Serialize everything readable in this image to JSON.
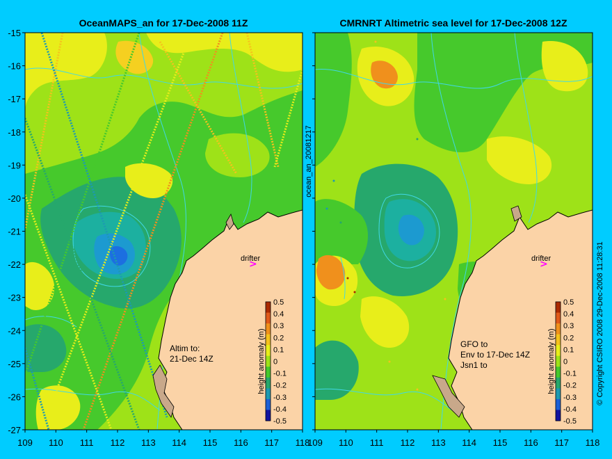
{
  "left_panel": {
    "title": "OceanMAPS_an for 17-Dec-2008 11Z",
    "note_lines": [
      "Altim to:",
      "21-Dec 14Z"
    ],
    "drifter_label": "drifter"
  },
  "right_panel": {
    "title": "CMRNRT Altimetric sea level  for 17-Dec-2008 12Z",
    "note_lines": [
      "GFO to",
      "Env to 17-Dec 14Z",
      "Jsn1 to"
    ],
    "drifter_label": "drifter"
  },
  "side_label": "ocean_an_20081217",
  "copyright": "© Copyright CSIRO 2008   29-Dec-2008 11:28:31",
  "colorbar": {
    "label": "height anomaly (m)",
    "ticks": [
      "0.5",
      "0.4",
      "0.3",
      "0.2",
      "0.1",
      "0",
      "-0.1",
      "-0.2",
      "-0.3",
      "-0.4",
      "-0.5"
    ],
    "colors": [
      "#aa2a00",
      "#e0591a",
      "#f0901c",
      "#f5c21c",
      "#e8ee1a",
      "#9ee218",
      "#46c92c",
      "#26a86c",
      "#1c9ab2",
      "#1c5fd6",
      "#1212a0"
    ]
  },
  "axes": {
    "x_ticks": [
      "109",
      "110",
      "111",
      "112",
      "113",
      "114",
      "115",
      "116",
      "117",
      "118"
    ],
    "y_ticks": [
      "-15",
      "-16",
      "-17",
      "-18",
      "-19",
      "-20",
      "-21",
      "-22",
      "-23",
      "-24",
      "-25",
      "-26",
      "-27"
    ]
  },
  "colors": {
    "background": "#00ccff",
    "land": "#fbd3a7",
    "coast_shelf": "#c8a88a",
    "contour": "#40d8e6",
    "drifter": "#ff00ff"
  }
}
